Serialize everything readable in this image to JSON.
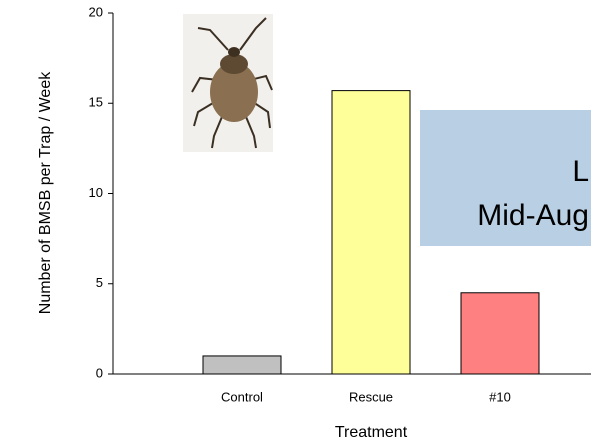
{
  "chart_data": {
    "type": "bar",
    "y_label": "Number of BMSB per Trap / Week",
    "x_label": "Treatment",
    "categories": [
      "Control",
      "Rescue",
      "#10"
    ],
    "values": [
      1.0,
      15.7,
      4.5
    ],
    "colors": [
      "#c0c0c0",
      "#ffff99",
      "#ff8080"
    ],
    "ylim": [
      0,
      20
    ],
    "yticks": [
      0,
      5,
      10,
      15,
      20
    ],
    "annotations": [
      "L",
      "Mid-Aug"
    ]
  }
}
